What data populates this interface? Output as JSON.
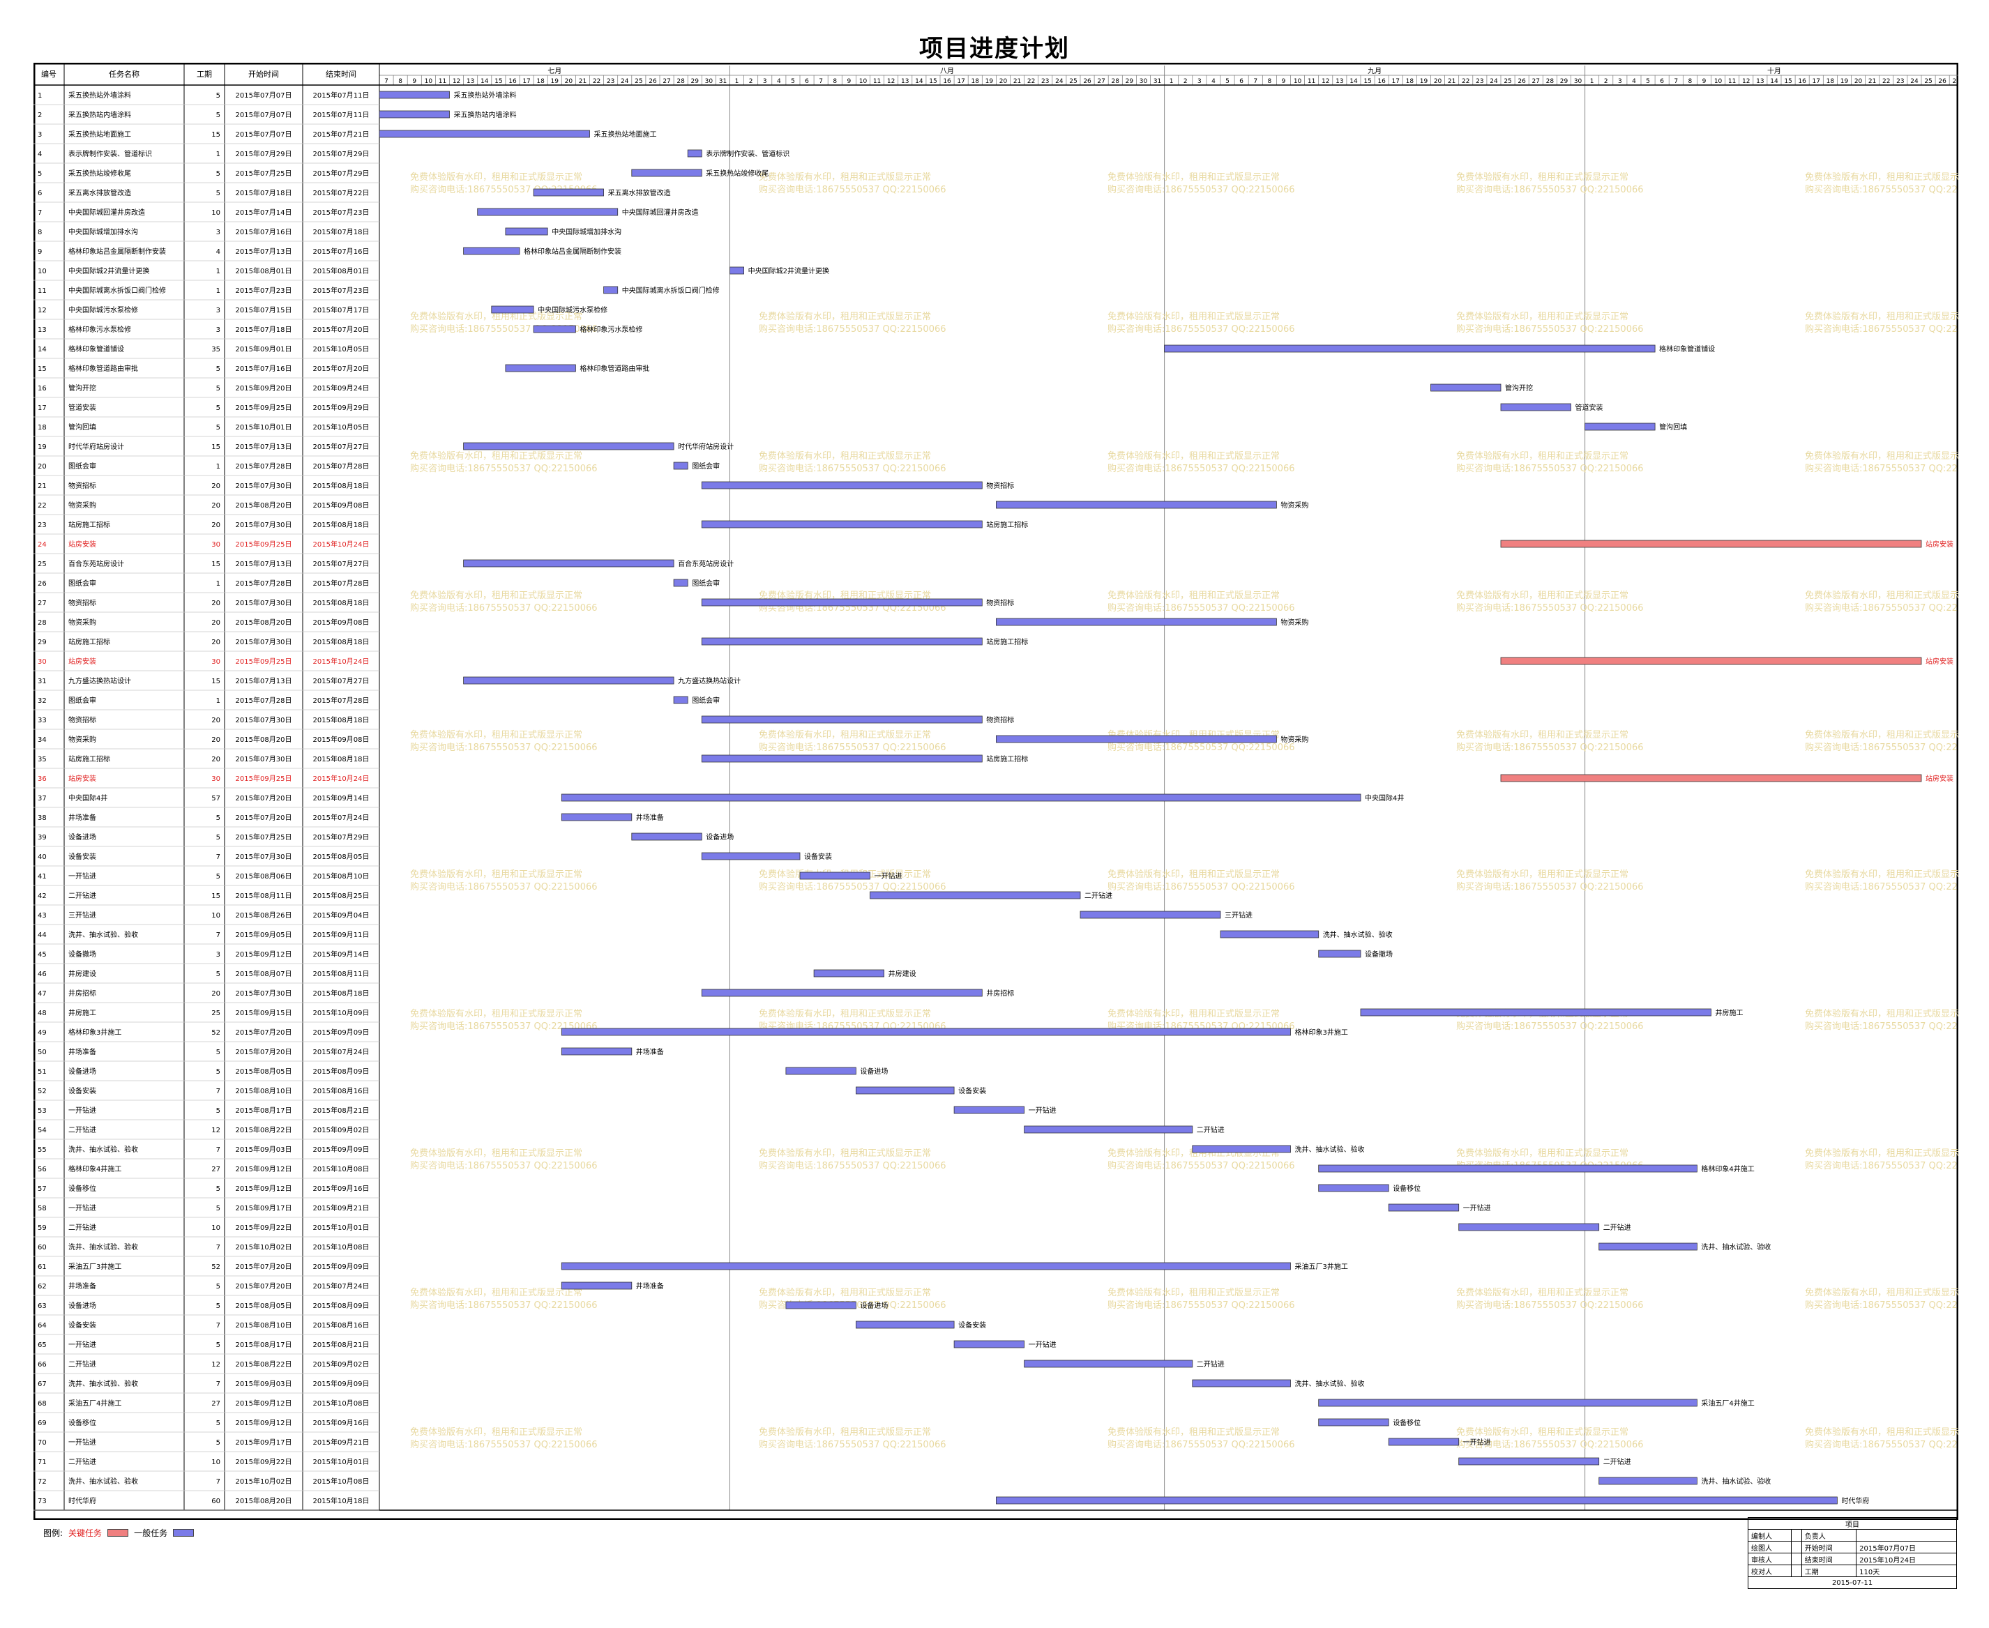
{
  "title": "项目进度计划",
  "columns": {
    "id": "编号",
    "name": "任务名称",
    "dur": "工期",
    "start": "开始时间",
    "end": "结束时间"
  },
  "months": [
    {
      "label": "七月",
      "days": [
        7,
        8,
        9,
        10,
        11,
        12,
        13,
        14,
        15,
        16,
        17,
        18,
        19,
        20,
        21,
        22,
        23,
        24,
        25,
        26,
        27,
        28,
        29,
        30,
        31
      ]
    },
    {
      "label": "八月",
      "days": [
        1,
        2,
        3,
        4,
        5,
        6,
        7,
        8,
        9,
        10,
        11,
        12,
        13,
        14,
        15,
        16,
        17,
        18,
        19,
        20,
        21,
        22,
        23,
        24,
        25,
        26,
        27,
        28,
        29,
        30,
        31
      ]
    },
    {
      "label": "九月",
      "days": [
        1,
        2,
        3,
        4,
        5,
        6,
        7,
        8,
        9,
        10,
        11,
        12,
        13,
        14,
        15,
        16,
        17,
        18,
        19,
        20,
        21,
        22,
        23,
        24,
        25,
        26,
        27,
        28,
        29,
        30
      ]
    },
    {
      "label": "十月",
      "days": [
        1,
        2,
        3,
        4,
        5,
        6,
        7,
        8,
        9,
        10,
        11,
        12,
        13,
        14,
        15,
        16,
        17,
        18,
        19,
        20,
        21,
        22,
        23,
        24,
        25,
        26,
        27
      ]
    }
  ],
  "colors": {
    "critical": "#f08080",
    "normal": "#7b7be8",
    "critical_text": "#e02020",
    "grid": "#c8c8c8",
    "watermark": "#e8d9a0"
  },
  "watermark": {
    "line1": "免费体验版有水印，租用和正式版显示正常",
    "line2": "购买咨询电话:18675550537 QQ:22150066"
  },
  "legend": {
    "label": "图例:",
    "critical": "关键任务",
    "normal": "一般任务"
  },
  "info_panel": {
    "header": "项目",
    "rows": [
      [
        "编制人",
        "",
        "负责人",
        ""
      ],
      [
        "绘图人",
        "",
        "开始时间",
        "2015年07月07日"
      ],
      [
        "审核人",
        "",
        "结束时间",
        "2015年10月24日"
      ],
      [
        "校对人",
        "",
        "工期",
        "110天"
      ]
    ],
    "date": "2015-07-11"
  },
  "chart_data": {
    "type": "gantt",
    "title": "项目进度计划",
    "x_range": [
      "2015-07-07",
      "2015-10-27"
    ],
    "tasks": [
      {
        "id": "1",
        "name": "采五换热站外墙涂料",
        "dur": "5",
        "start": "2015年07月07日",
        "end": "2015年07月11日",
        "bar": "采五换热站外墙涂料",
        "crit": false
      },
      {
        "id": "2",
        "name": "采五换热站内墙涂料",
        "dur": "5",
        "start": "2015年07月07日",
        "end": "2015年07月11日",
        "bar": "采五换热站内墙涂料",
        "crit": false
      },
      {
        "id": "3",
        "name": "采五换热站地面施工",
        "dur": "15",
        "start": "2015年07月07日",
        "end": "2015年07月21日",
        "bar": "采五换热站地面施工",
        "crit": false
      },
      {
        "id": "4",
        "name": "表示牌制作安装、管道标识",
        "dur": "1",
        "start": "2015年07月29日",
        "end": "2015年07月29日",
        "bar": "表示牌制作安装、管道标识",
        "crit": false
      },
      {
        "id": "5",
        "name": "采五换热站竣修收尾",
        "dur": "5",
        "start": "2015年07月25日",
        "end": "2015年07月29日",
        "bar": "采五换热站竣修收尾",
        "crit": false
      },
      {
        "id": "6",
        "name": "采五离水排放管改造",
        "dur": "5",
        "start": "2015年07月18日",
        "end": "2015年07月22日",
        "bar": "采五离水排放管改造",
        "crit": false
      },
      {
        "id": "7",
        "name": "中央国际城回灌井房改造",
        "dur": "10",
        "start": "2015年07月14日",
        "end": "2015年07月23日",
        "bar": "中央国际城回灌井房改造",
        "crit": false
      },
      {
        "id": "8",
        "name": "中央国际城增加排水沟",
        "dur": "3",
        "start": "2015年07月16日",
        "end": "2015年07月18日",
        "bar": "中央国际城增加排水沟",
        "crit": false
      },
      {
        "id": "9",
        "name": "格林印象站吕金属隔断制作安装",
        "dur": "4",
        "start": "2015年07月13日",
        "end": "2015年07月16日",
        "bar": "格林印象站吕金属隔断制作安装",
        "crit": false
      },
      {
        "id": "10",
        "name": "中央国际城2井流量计更换",
        "dur": "1",
        "start": "2015年08月01日",
        "end": "2015年08月01日",
        "bar": "中央国际城2井流量计更换",
        "crit": false
      },
      {
        "id": "11",
        "name": "中央国际城离水拆饭口阀门检修",
        "dur": "1",
        "start": "2015年07月23日",
        "end": "2015年07月23日",
        "bar": "中央国际城离水拆饭口阀门检修",
        "crit": false
      },
      {
        "id": "12",
        "name": "中央国际城污水泵检修",
        "dur": "3",
        "start": "2015年07月15日",
        "end": "2015年07月17日",
        "bar": "中央国际城污水泵检修",
        "crit": false
      },
      {
        "id": "13",
        "name": "格林印象污水泵检修",
        "dur": "3",
        "start": "2015年07月18日",
        "end": "2015年07月20日",
        "bar": "格林印象污水泵检修",
        "crit": false
      },
      {
        "id": "14",
        "name": "格林印象管道铺设",
        "dur": "35",
        "start": "2015年09月01日",
        "end": "2015年10月05日",
        "bar": "格林印象管道铺设",
        "crit": false
      },
      {
        "id": "15",
        "name": "格林印象管道路由审批",
        "dur": "5",
        "start": "2015年07月16日",
        "end": "2015年07月20日",
        "bar": "格林印象管道路由审批",
        "crit": false
      },
      {
        "id": "16",
        "name": "管沟开挖",
        "dur": "5",
        "start": "2015年09月20日",
        "end": "2015年09月24日",
        "bar": "管沟开挖",
        "crit": false
      },
      {
        "id": "17",
        "name": "管道安装",
        "dur": "5",
        "start": "2015年09月25日",
        "end": "2015年09月29日",
        "bar": "管道安装",
        "crit": false
      },
      {
        "id": "18",
        "name": "管沟回填",
        "dur": "5",
        "start": "2015年10月01日",
        "end": "2015年10月05日",
        "bar": "管沟回填",
        "crit": false
      },
      {
        "id": "19",
        "name": "时代华府站房设计",
        "dur": "15",
        "start": "2015年07月13日",
        "end": "2015年07月27日",
        "bar": "时代华府站房设计",
        "crit": false
      },
      {
        "id": "20",
        "name": "图纸会审",
        "dur": "1",
        "start": "2015年07月28日",
        "end": "2015年07月28日",
        "bar": "图纸会审",
        "crit": false
      },
      {
        "id": "21",
        "name": "物资招标",
        "dur": "20",
        "start": "2015年07月30日",
        "end": "2015年08月18日",
        "bar": "物资招标",
        "crit": false
      },
      {
        "id": "22",
        "name": "物资采购",
        "dur": "20",
        "start": "2015年08月20日",
        "end": "2015年09月08日",
        "bar": "物资采购",
        "crit": false
      },
      {
        "id": "23",
        "name": "站房施工招标",
        "dur": "20",
        "start": "2015年07月30日",
        "end": "2015年08月18日",
        "bar": "站房施工招标",
        "crit": false
      },
      {
        "id": "24",
        "name": "站房安装",
        "dur": "30",
        "start": "2015年09月25日",
        "end": "2015年10月24日",
        "bar": "站房安装",
        "crit": true
      },
      {
        "id": "25",
        "name": "百合东苑站房设计",
        "dur": "15",
        "start": "2015年07月13日",
        "end": "2015年07月27日",
        "bar": "百合东苑站房设计",
        "crit": false
      },
      {
        "id": "26",
        "name": "图纸会审",
        "dur": "1",
        "start": "2015年07月28日",
        "end": "2015年07月28日",
        "bar": "图纸会审",
        "crit": false
      },
      {
        "id": "27",
        "name": "物资招标",
        "dur": "20",
        "start": "2015年07月30日",
        "end": "2015年08月18日",
        "bar": "物资招标",
        "crit": false
      },
      {
        "id": "28",
        "name": "物资采购",
        "dur": "20",
        "start": "2015年08月20日",
        "end": "2015年09月08日",
        "bar": "物资采购",
        "crit": false
      },
      {
        "id": "29",
        "name": "站房施工招标",
        "dur": "20",
        "start": "2015年07月30日",
        "end": "2015年08月18日",
        "bar": "站房施工招标",
        "crit": false
      },
      {
        "id": "30",
        "name": "站房安装",
        "dur": "30",
        "start": "2015年09月25日",
        "end": "2015年10月24日",
        "bar": "站房安装",
        "crit": true
      },
      {
        "id": "31",
        "name": "九方盛达换热站设计",
        "dur": "15",
        "start": "2015年07月13日",
        "end": "2015年07月27日",
        "bar": "九方盛达换热站设计",
        "crit": false
      },
      {
        "id": "32",
        "name": "图纸会审",
        "dur": "1",
        "start": "2015年07月28日",
        "end": "2015年07月28日",
        "bar": "图纸会审",
        "crit": false
      },
      {
        "id": "33",
        "name": "物资招标",
        "dur": "20",
        "start": "2015年07月30日",
        "end": "2015年08月18日",
        "bar": "物资招标",
        "crit": false
      },
      {
        "id": "34",
        "name": "物资采购",
        "dur": "20",
        "start": "2015年08月20日",
        "end": "2015年09月08日",
        "bar": "物资采购",
        "crit": false
      },
      {
        "id": "35",
        "name": "站房施工招标",
        "dur": "20",
        "start": "2015年07月30日",
        "end": "2015年08月18日",
        "bar": "站房施工招标",
        "crit": false
      },
      {
        "id": "36",
        "name": "站房安装",
        "dur": "30",
        "start": "2015年09月25日",
        "end": "2015年10月24日",
        "bar": "站房安装",
        "crit": true
      },
      {
        "id": "37",
        "name": "中央国际4井",
        "dur": "57",
        "start": "2015年07月20日",
        "end": "2015年09月14日",
        "bar": "中央国际4井",
        "crit": false
      },
      {
        "id": "38",
        "name": "井场准备",
        "dur": "5",
        "start": "2015年07月20日",
        "end": "2015年07月24日",
        "bar": "井场准备",
        "crit": false
      },
      {
        "id": "39",
        "name": "设备进场",
        "dur": "5",
        "start": "2015年07月25日",
        "end": "2015年07月29日",
        "bar": "设备进场",
        "crit": false
      },
      {
        "id": "40",
        "name": "设备安装",
        "dur": "7",
        "start": "2015年07月30日",
        "end": "2015年08月05日",
        "bar": "设备安装",
        "crit": false
      },
      {
        "id": "41",
        "name": "一开钻进",
        "dur": "5",
        "start": "2015年08月06日",
        "end": "2015年08月10日",
        "bar": "一开钻进",
        "crit": false
      },
      {
        "id": "42",
        "name": "二开钻进",
        "dur": "15",
        "start": "2015年08月11日",
        "end": "2015年08月25日",
        "bar": "二开钻进",
        "crit": false
      },
      {
        "id": "43",
        "name": "三开钻进",
        "dur": "10",
        "start": "2015年08月26日",
        "end": "2015年09月04日",
        "bar": "三开钻进",
        "crit": false
      },
      {
        "id": "44",
        "name": "洗井、抽水试验、验收",
        "dur": "7",
        "start": "2015年09月05日",
        "end": "2015年09月11日",
        "bar": "洗井、抽水试验、验收",
        "crit": false
      },
      {
        "id": "45",
        "name": "设备撤场",
        "dur": "3",
        "start": "2015年09月12日",
        "end": "2015年09月14日",
        "bar": "设备撤场",
        "crit": false
      },
      {
        "id": "46",
        "name": "井房建设",
        "dur": "5",
        "start": "2015年08月07日",
        "end": "2015年08月11日",
        "bar": "井房建设",
        "crit": false
      },
      {
        "id": "47",
        "name": "井房招标",
        "dur": "20",
        "start": "2015年07月30日",
        "end": "2015年08月18日",
        "bar": "井房招标",
        "crit": false
      },
      {
        "id": "48",
        "name": "井房施工",
        "dur": "25",
        "start": "2015年09月15日",
        "end": "2015年10月09日",
        "bar": "井房施工",
        "crit": false
      },
      {
        "id": "49",
        "name": "格林印象3井施工",
        "dur": "52",
        "start": "2015年07月20日",
        "end": "2015年09月09日",
        "bar": "格林印象3井施工",
        "crit": false
      },
      {
        "id": "50",
        "name": "井场准备",
        "dur": "5",
        "start": "2015年07月20日",
        "end": "2015年07月24日",
        "bar": "井场准备",
        "crit": false
      },
      {
        "id": "51",
        "name": "设备进场",
        "dur": "5",
        "start": "2015年08月05日",
        "end": "2015年08月09日",
        "bar": "设备进场",
        "crit": false
      },
      {
        "id": "52",
        "name": "设备安装",
        "dur": "7",
        "start": "2015年08月10日",
        "end": "2015年08月16日",
        "bar": "设备安装",
        "crit": false
      },
      {
        "id": "53",
        "name": "一开钻进",
        "dur": "5",
        "start": "2015年08月17日",
        "end": "2015年08月21日",
        "bar": "一开钻进",
        "crit": false
      },
      {
        "id": "54",
        "name": "二开钻进",
        "dur": "12",
        "start": "2015年08月22日",
        "end": "2015年09月02日",
        "bar": "二开钻进",
        "crit": false
      },
      {
        "id": "55",
        "name": "洗井、抽水试验、验收",
        "dur": "7",
        "start": "2015年09月03日",
        "end": "2015年09月09日",
        "bar": "洗井、抽水试验、验收",
        "crit": false
      },
      {
        "id": "56",
        "name": "格林印象4井施工",
        "dur": "27",
        "start": "2015年09月12日",
        "end": "2015年10月08日",
        "bar": "格林印象4井施工",
        "crit": false
      },
      {
        "id": "57",
        "name": "设备移位",
        "dur": "5",
        "start": "2015年09月12日",
        "end": "2015年09月16日",
        "bar": "设备移位",
        "crit": false
      },
      {
        "id": "58",
        "name": "一开钻进",
        "dur": "5",
        "start": "2015年09月17日",
        "end": "2015年09月21日",
        "bar": "一开钻进",
        "crit": false
      },
      {
        "id": "59",
        "name": "二开钻进",
        "dur": "10",
        "start": "2015年09月22日",
        "end": "2015年10月01日",
        "bar": "二开钻进",
        "crit": false
      },
      {
        "id": "60",
        "name": "洗井、抽水试验、验收",
        "dur": "7",
        "start": "2015年10月02日",
        "end": "2015年10月08日",
        "bar": "洗井、抽水试验、验收",
        "crit": false
      },
      {
        "id": "61",
        "name": "采油五厂3井施工",
        "dur": "52",
        "start": "2015年07月20日",
        "end": "2015年09月09日",
        "bar": "采油五厂3井施工",
        "crit": false
      },
      {
        "id": "62",
        "name": "井场准备",
        "dur": "5",
        "start": "2015年07月20日",
        "end": "2015年07月24日",
        "bar": "井场准备",
        "crit": false
      },
      {
        "id": "63",
        "name": "设备进场",
        "dur": "5",
        "start": "2015年08月05日",
        "end": "2015年08月09日",
        "bar": "设备进场",
        "crit": false
      },
      {
        "id": "64",
        "name": "设备安装",
        "dur": "7",
        "start": "2015年08月10日",
        "end": "2015年08月16日",
        "bar": "设备安装",
        "crit": false
      },
      {
        "id": "65",
        "name": "一开钻进",
        "dur": "5",
        "start": "2015年08月17日",
        "end": "2015年08月21日",
        "bar": "一开钻进",
        "crit": false
      },
      {
        "id": "66",
        "name": "二开钻进",
        "dur": "12",
        "start": "2015年08月22日",
        "end": "2015年09月02日",
        "bar": "二开钻进",
        "crit": false
      },
      {
        "id": "67",
        "name": "洗井、抽水试验、验收",
        "dur": "7",
        "start": "2015年09月03日",
        "end": "2015年09月09日",
        "bar": "洗井、抽水试验、验收",
        "crit": false
      },
      {
        "id": "68",
        "name": "采油五厂4井施工",
        "dur": "27",
        "start": "2015年09月12日",
        "end": "2015年10月08日",
        "bar": "采油五厂4井施工",
        "crit": false
      },
      {
        "id": "69",
        "name": "设备移位",
        "dur": "5",
        "start": "2015年09月12日",
        "end": "2015年09月16日",
        "bar": "设备移位",
        "crit": false
      },
      {
        "id": "70",
        "name": "一开钻进",
        "dur": "5",
        "start": "2015年09月17日",
        "end": "2015年09月21日",
        "bar": "一开钻进",
        "crit": false
      },
      {
        "id": "71",
        "name": "二开钻进",
        "dur": "10",
        "start": "2015年09月22日",
        "end": "2015年10月01日",
        "bar": "二开钻进",
        "crit": false
      },
      {
        "id": "72",
        "name": "洗井、抽水试验、验收",
        "dur": "7",
        "start": "2015年10月02日",
        "end": "2015年10月08日",
        "bar": "洗井、抽水试验、验收",
        "crit": false
      },
      {
        "id": "73",
        "name": "时代华府",
        "dur": "60",
        "start": "2015年08月20日",
        "end": "2015年10月18日",
        "bar": "时代华府",
        "crit": false
      }
    ]
  }
}
